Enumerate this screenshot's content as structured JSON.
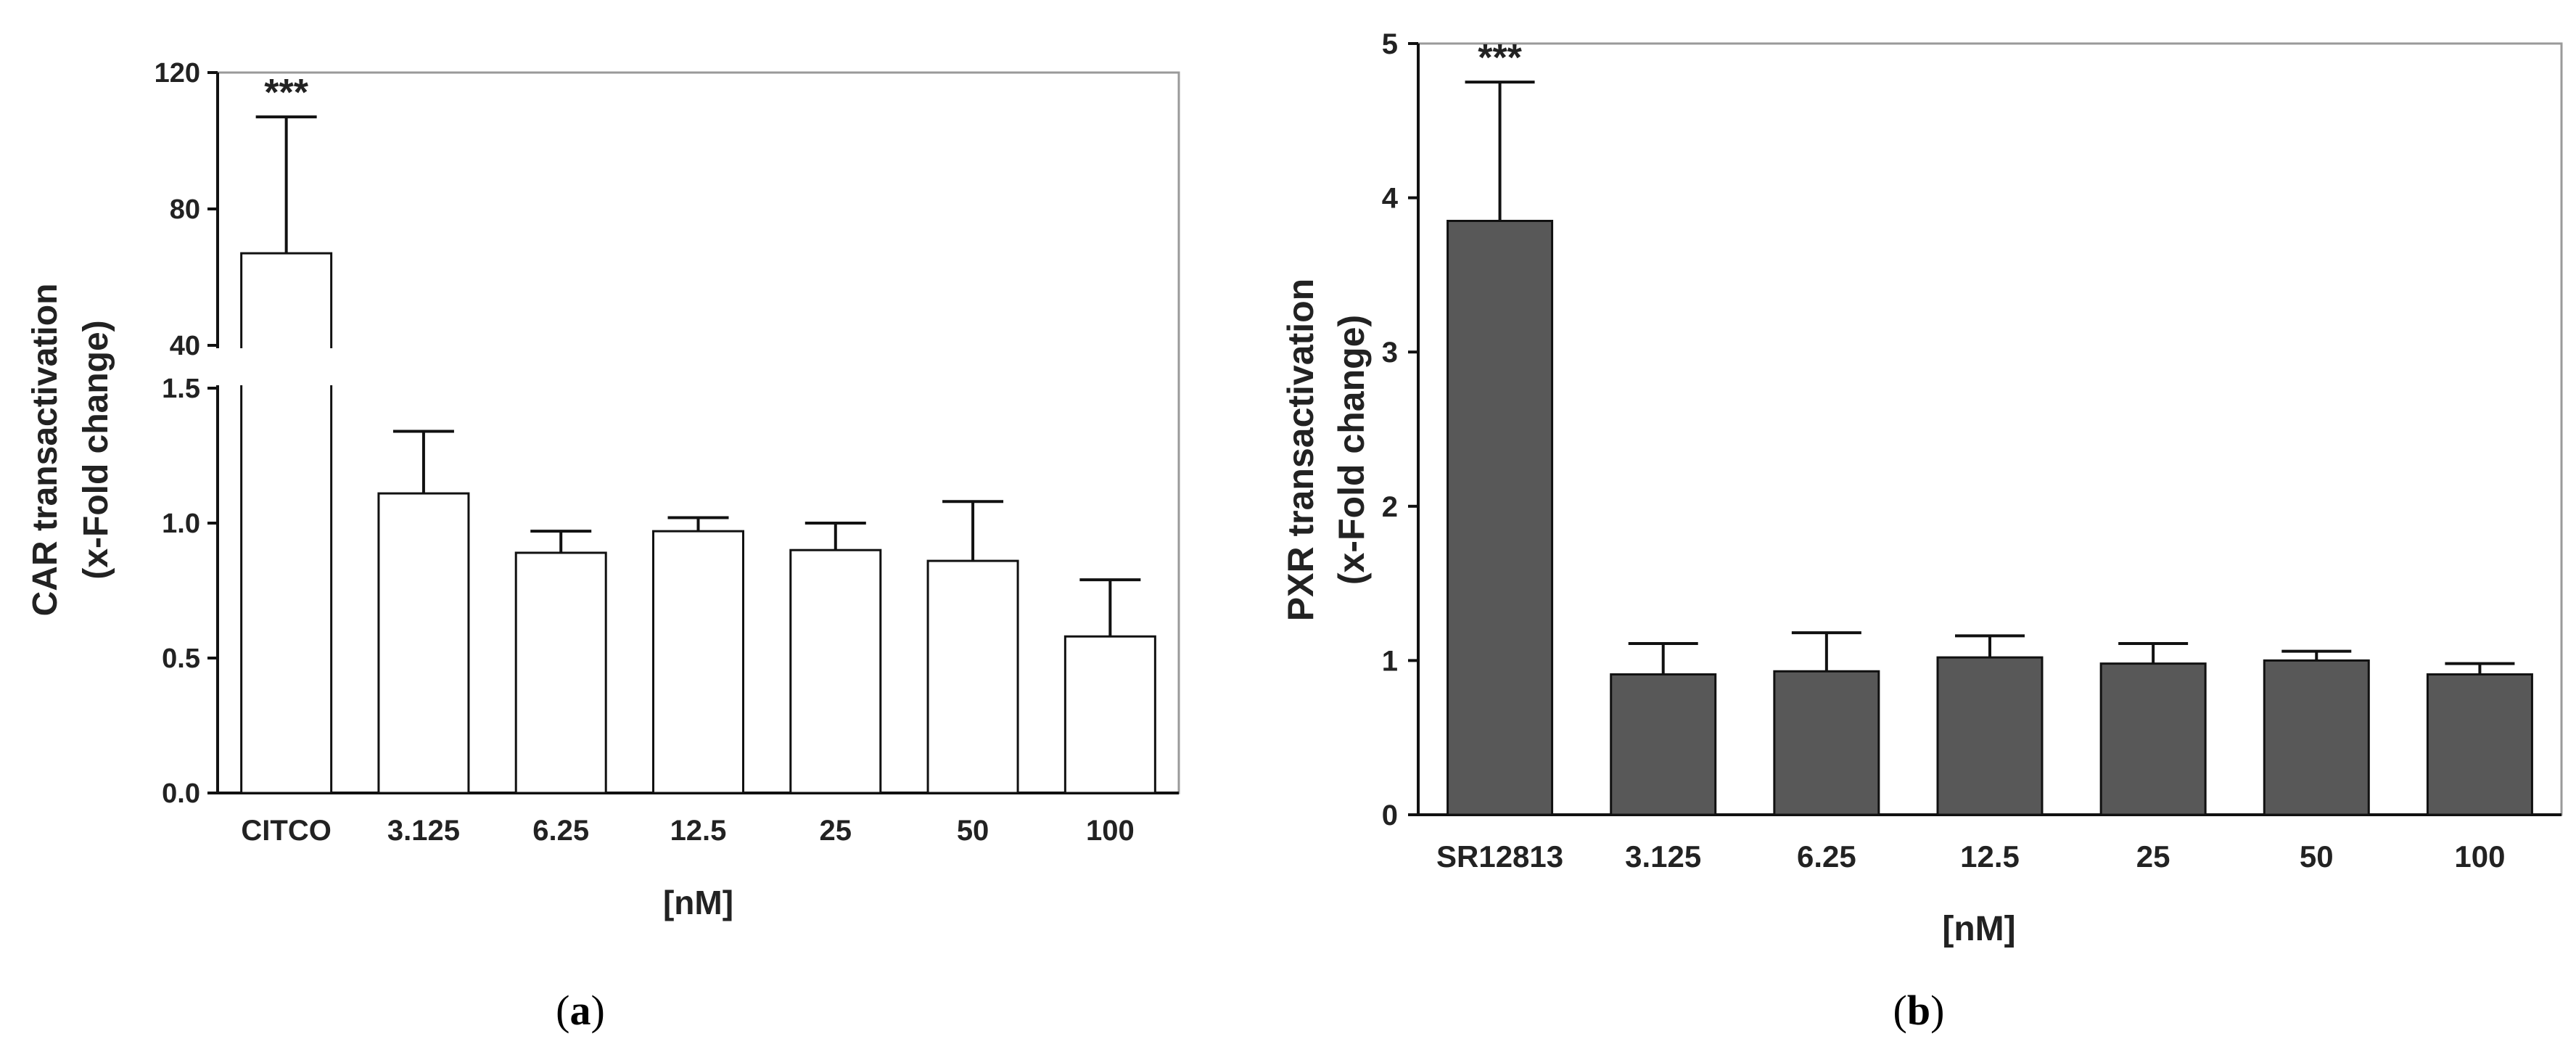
{
  "colors": {
    "frame": "#9a9a9a",
    "axis": "#111111",
    "bar_a_fill": "#ffffff",
    "bar_b_fill": "#585858",
    "bar_stroke": "#111111"
  },
  "chart_data": [
    {
      "type": "bar",
      "panel_label": "a",
      "ylabel_line1": "CAR transactivation",
      "ylabel_line2": "(x-Fold change)",
      "xlabel": "[nM]",
      "broken_axis": true,
      "ylim_lower": [
        0,
        1.5
      ],
      "ylim_upper": [
        40,
        120
      ],
      "yticks_lower": [
        "0.0",
        "0.5",
        "1.0",
        "1.5"
      ],
      "yticks_upper": [
        "40",
        "80",
        "120"
      ],
      "categories": [
        "CITCO",
        "3.125",
        "6.25",
        "12.5",
        "25",
        "50",
        "100"
      ],
      "values": [
        67,
        1.11,
        0.89,
        0.97,
        0.9,
        0.86,
        0.58
      ],
      "errors": [
        40,
        0.23,
        0.08,
        0.05,
        0.1,
        0.22,
        0.21
      ],
      "significance": [
        "***",
        "",
        "",
        "",
        "",
        "",
        ""
      ]
    },
    {
      "type": "bar",
      "panel_label": "b",
      "ylabel_line1": "PXR transactivation",
      "ylabel_line2": "(x-Fold change)",
      "xlabel": "[nM]",
      "broken_axis": false,
      "ylim": [
        0,
        5
      ],
      "yticks": [
        "0",
        "1",
        "2",
        "3",
        "4",
        "5"
      ],
      "categories": [
        "SR12813",
        "3.125",
        "6.25",
        "12.5",
        "25",
        "50",
        "100"
      ],
      "values": [
        3.85,
        0.91,
        0.93,
        1.02,
        0.98,
        1.0,
        0.91
      ],
      "errors": [
        0.9,
        0.2,
        0.25,
        0.14,
        0.13,
        0.06,
        0.07
      ],
      "significance": [
        "***",
        "",
        "",
        "",
        "",
        "",
        ""
      ]
    }
  ]
}
